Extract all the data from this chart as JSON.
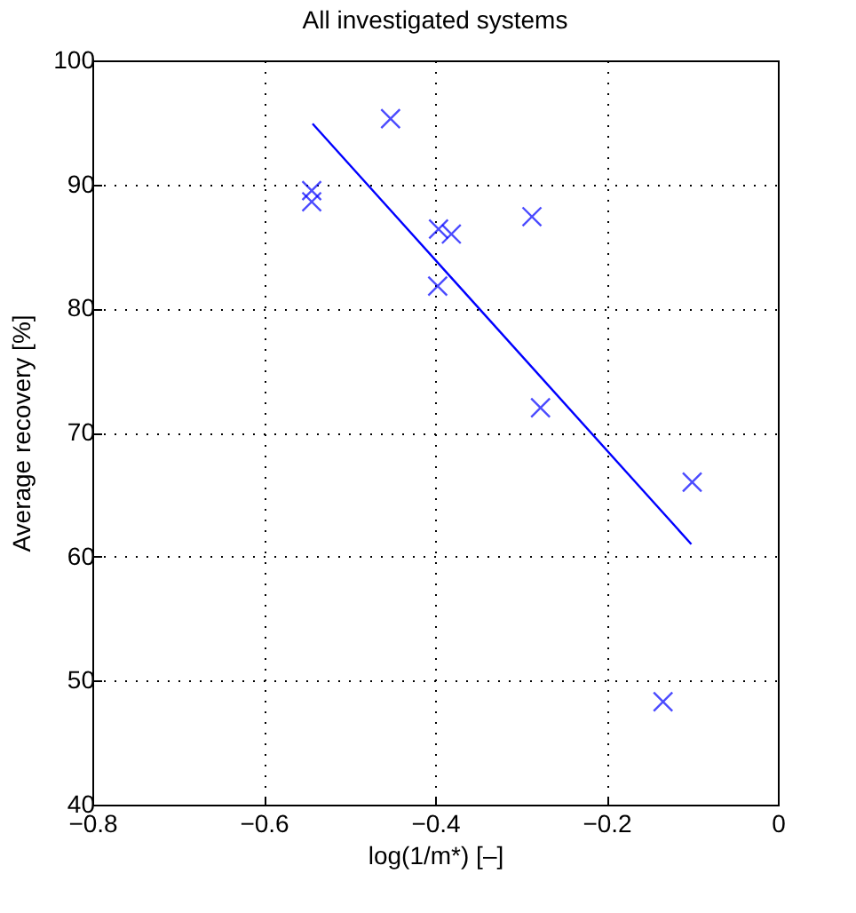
{
  "chart_data": {
    "type": "scatter",
    "title": "All investigated systems",
    "xlabel": "log(1/m*) [–]",
    "ylabel": "Average recovery [%]",
    "xlim": [
      -0.8,
      0
    ],
    "ylim": [
      40,
      100
    ],
    "xticks": [
      {
        "value": -0.8,
        "label": "−0.8"
      },
      {
        "value": -0.6,
        "label": "−0.6"
      },
      {
        "value": -0.4,
        "label": "−0.4"
      },
      {
        "value": -0.2,
        "label": "−0.2"
      },
      0
    ],
    "yticks": [
      40,
      50,
      60,
      70,
      80,
      90,
      100
    ],
    "grid": true,
    "series": [
      {
        "marker": "cross",
        "color": "#0000ff",
        "x": [
          -0.452,
          -0.544,
          -0.544,
          -0.396,
          -0.381,
          -0.287,
          -0.397,
          -0.277,
          -0.1,
          -0.134
        ],
        "values": [
          95.3,
          89.5,
          88.6,
          86.4,
          86.0,
          87.4,
          81.8,
          72.0,
          66.0,
          48.3
        ]
      },
      {
        "type": "line",
        "color": "#0000ff",
        "line_style": "solid",
        "x": [
          -0.543,
          -0.101
        ],
        "values": [
          94.9,
          61.0
        ]
      }
    ]
  }
}
